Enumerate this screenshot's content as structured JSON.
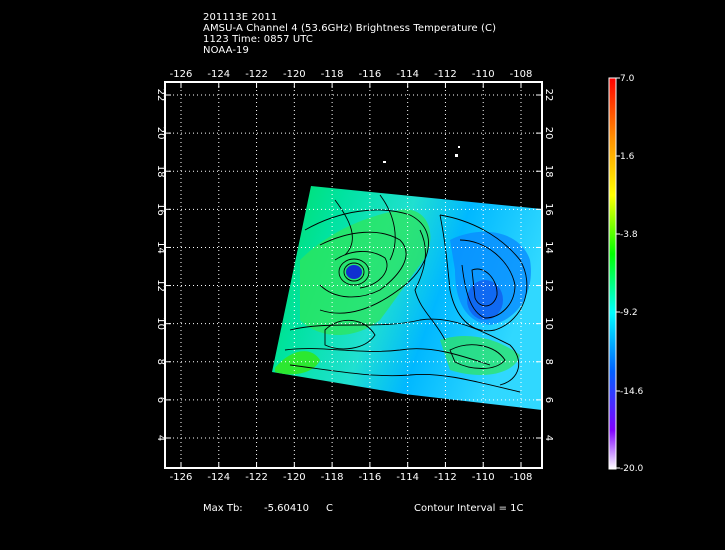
{
  "header": {
    "line1": "201113E 2011",
    "line2": "AMSU-A Channel 4 (53.6GHz) Brightness Temperature (C)",
    "line3": "1123 Time: 0857 UTC",
    "line4": "NOAA-19"
  },
  "map": {
    "lon_ticks": [
      "-126",
      "-124",
      "-122",
      "-120",
      "-118",
      "-116",
      "-114",
      "-112",
      "-110",
      "-108"
    ],
    "lat_ticks": [
      "4",
      "6",
      "8",
      "10",
      "12",
      "14",
      "16",
      "18",
      "20",
      "22"
    ],
    "grid": true
  },
  "colorbar": {
    "labels": [
      "7.0",
      "1.6",
      "-3.8",
      "-9.2",
      "-14.6",
      "-20.0"
    ],
    "colors": [
      "#ff0000",
      "#ff8c00",
      "#ffff00",
      "#00ff00",
      "#00ffff",
      "#0000ff",
      "#8000ff",
      "#ffffff"
    ]
  },
  "footer": {
    "max_label": "Max Tb:",
    "max_value": "-5.60410",
    "max_unit": "C",
    "contour": "Contour Interval = 1C"
  }
}
